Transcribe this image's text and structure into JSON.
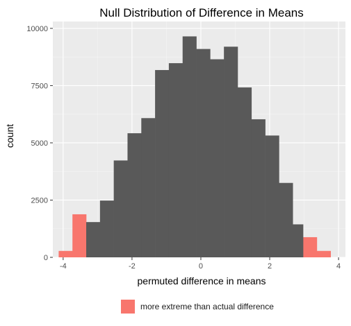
{
  "chart_data": {
    "type": "bar",
    "title": "Null Distribution of Difference in Means",
    "xlabel": "permuted difference in means",
    "ylabel": "count",
    "xlim": [
      -4.3,
      4.2
    ],
    "ylim": [
      0,
      10300
    ],
    "x_ticks": [
      -4,
      -2,
      0,
      2,
      4
    ],
    "x_tick_labels": [
      "-4",
      "-2",
      "0",
      "2",
      "4"
    ],
    "y_ticks": [
      0,
      2500,
      5000,
      7500,
      10000
    ],
    "y_tick_labels": [
      "0",
      "2500",
      "5000",
      "7500",
      "10000"
    ],
    "grid": true,
    "legend_position": "bottom",
    "colors": {
      "extreme": "#F8766D",
      "normal": "#595959",
      "panel": "#EBEBEB"
    },
    "series": [
      {
        "name": "more extreme than actual difference",
        "bins": [
          {
            "x0": -4.13,
            "x1": -3.73,
            "count": 280
          },
          {
            "x0": -3.73,
            "x1": -3.33,
            "count": 1880
          },
          {
            "x0": 2.97,
            "x1": 3.37,
            "count": 880
          },
          {
            "x0": 3.37,
            "x1": 3.77,
            "count": 280
          }
        ]
      },
      {
        "name": "",
        "bins": [
          {
            "x0": -3.33,
            "x1": -2.93,
            "count": 1540
          },
          {
            "x0": -2.93,
            "x1": -2.53,
            "count": 2480
          },
          {
            "x0": -2.53,
            "x1": -2.13,
            "count": 4230
          },
          {
            "x0": -2.13,
            "x1": -1.73,
            "count": 5420
          },
          {
            "x0": -1.73,
            "x1": -1.33,
            "count": 6080
          },
          {
            "x0": -1.33,
            "x1": -0.93,
            "count": 8180
          },
          {
            "x0": -0.93,
            "x1": -0.53,
            "count": 8480
          },
          {
            "x0": -0.53,
            "x1": -0.13,
            "count": 9650
          },
          {
            "x0": -0.13,
            "x1": 0.27,
            "count": 9100
          },
          {
            "x0": 0.27,
            "x1": 0.67,
            "count": 8650
          },
          {
            "x0": 0.67,
            "x1": 1.07,
            "count": 9200
          },
          {
            "x0": 1.07,
            "x1": 1.47,
            "count": 7420
          },
          {
            "x0": 1.47,
            "x1": 1.87,
            "count": 6030
          },
          {
            "x0": 1.87,
            "x1": 2.27,
            "count": 5320
          },
          {
            "x0": 2.27,
            "x1": 2.67,
            "count": 3250
          },
          {
            "x0": 2.67,
            "x1": 2.97,
            "count": 1440
          }
        ]
      }
    ]
  },
  "legend": {
    "label": "more extreme than actual difference"
  }
}
